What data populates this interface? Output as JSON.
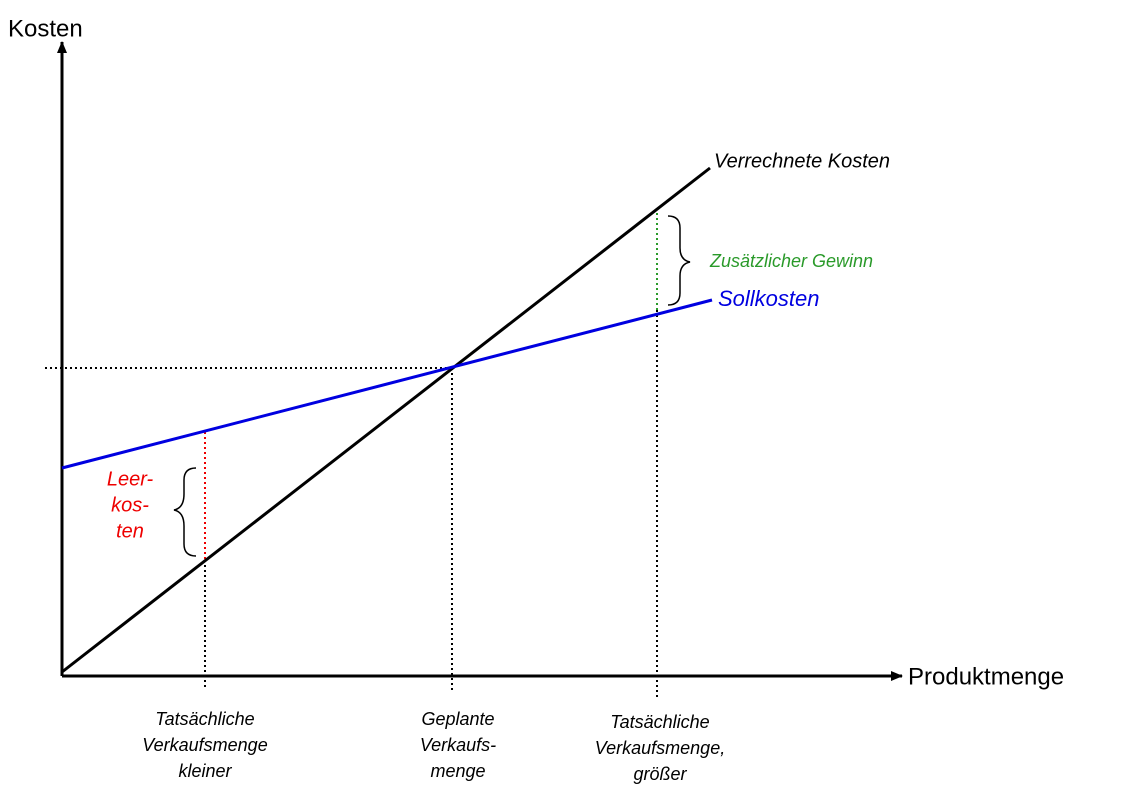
{
  "axes": {
    "y_label": "Kosten",
    "x_label": "Produktmenge"
  },
  "lines": [
    {
      "label": "Verrechnete Kosten"
    },
    {
      "label": "Sollkosten"
    }
  ],
  "annotations": {
    "gain": "Zusätzlicher Gewinn",
    "idle": [
      "Leer-",
      "kos-",
      "ten"
    ]
  },
  "x_labels": [
    [
      "Tatsächliche",
      "Verkaufsmenge",
      "kleiner"
    ],
    [
      "Geplante",
      "Verkaufs-",
      "menge"
    ],
    [
      "Tatsächliche",
      "Verkaufsmenge,",
      "größer"
    ]
  ]
}
